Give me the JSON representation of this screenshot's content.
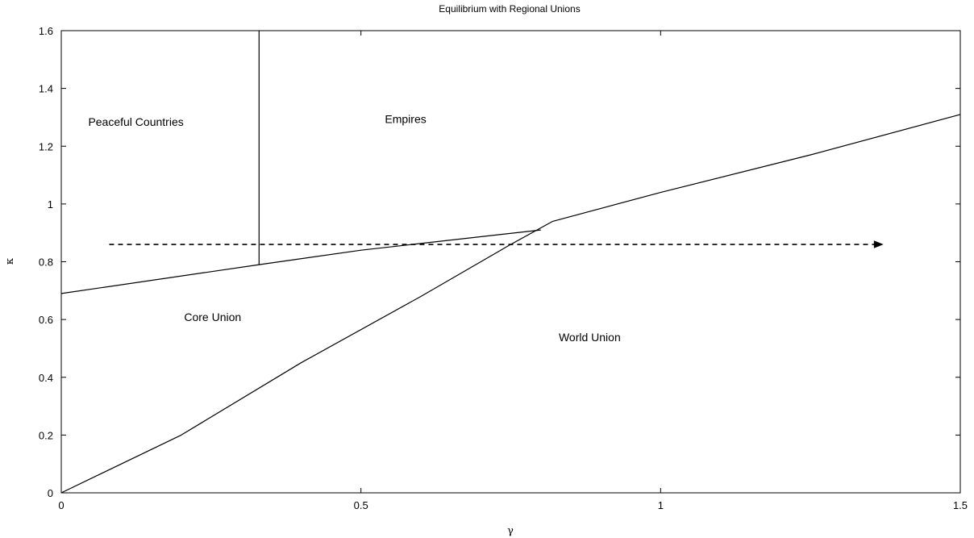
{
  "chart_data": {
    "type": "line",
    "title": "Equilibrium with Regional Unions",
    "xlabel": "γ",
    "ylabel": "κ",
    "xlim": [
      0,
      1.5
    ],
    "ylim": [
      0,
      1.6
    ],
    "grid": false,
    "x_ticks": [
      {
        "value": 0,
        "label": "0"
      },
      {
        "value": 0.5,
        "label": "0.5"
      },
      {
        "value": 1,
        "label": "1"
      },
      {
        "value": 1.5,
        "label": "1.5"
      }
    ],
    "y_ticks": [
      {
        "value": 0,
        "label": "0"
      },
      {
        "value": 0.2,
        "label": "0.2"
      },
      {
        "value": 0.4,
        "label": "0.4"
      },
      {
        "value": 0.6,
        "label": "0.6"
      },
      {
        "value": 0.8,
        "label": "0.8"
      },
      {
        "value": 1,
        "label": "1"
      },
      {
        "value": 1.2,
        "label": "1.2"
      },
      {
        "value": 1.4,
        "label": "1.4"
      },
      {
        "value": 1.6,
        "label": "1.6"
      }
    ],
    "series": [
      {
        "id": "upper-boundary",
        "style": "solid",
        "x": [
          0,
          0.33,
          0.5,
          0.8
        ],
        "y": [
          0.69,
          0.79,
          0.84,
          0.91
        ]
      },
      {
        "id": "diagonal-boundary",
        "style": "solid",
        "x": [
          0,
          0.2,
          0.4,
          0.6,
          0.75,
          0.82
        ],
        "y": [
          0,
          0.2,
          0.45,
          0.68,
          0.86,
          0.94
        ]
      },
      {
        "id": "world-union-boundary",
        "style": "solid",
        "x": [
          0.82,
          1.0,
          1.25,
          1.5
        ],
        "y": [
          0.94,
          1.04,
          1.17,
          1.31
        ]
      },
      {
        "id": "vertical-boundary",
        "style": "solid",
        "x": [
          0.33,
          0.33
        ],
        "y": [
          0.79,
          1.6
        ]
      }
    ],
    "arrow": {
      "style": "dashed",
      "x": [
        0.08,
        1.37
      ],
      "y": [
        0.86,
        0.86
      ]
    },
    "annotations": [
      {
        "text": "Peaceful Countries",
        "x": 0.045,
        "y": 1.27
      },
      {
        "text": "Empires",
        "x": 0.54,
        "y": 1.28
      },
      {
        "text": "Core Union",
        "x": 0.205,
        "y": 0.595
      },
      {
        "text": "World Union",
        "x": 0.83,
        "y": 0.525
      }
    ]
  }
}
